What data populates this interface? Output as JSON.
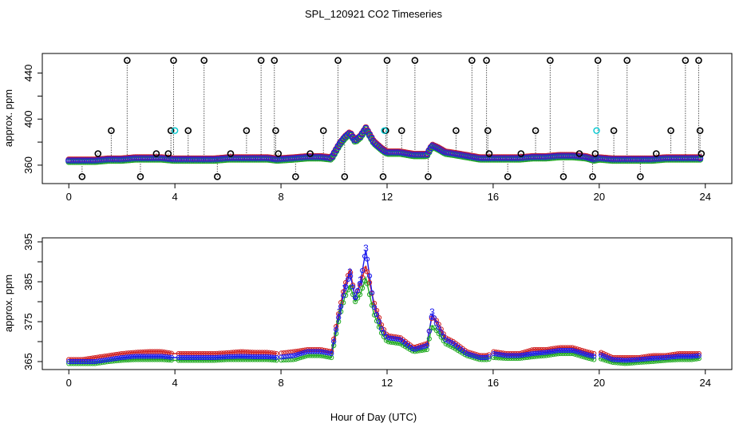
{
  "title": "SPL_120921  CO2 Timeseries",
  "xlabel": "Hour of Day (UTC)",
  "chart_data": [
    {
      "type": "scatter",
      "name": "top-panel",
      "ylabel": "approx. ppm",
      "xlim": [
        -1,
        25
      ],
      "ylim": [
        344,
        457
      ],
      "xticks": [
        0,
        4,
        8,
        12,
        16,
        20,
        24
      ],
      "yticks": [
        360,
        400,
        440
      ],
      "ytick_minor": [
        380,
        420
      ],
      "base": {
        "x": [
          0.0,
          0.5,
          1.0,
          1.5,
          2.0,
          2.5,
          3.0,
          3.5,
          3.95,
          4.5,
          5.0,
          5.5,
          6.0,
          6.5,
          7.0,
          7.5,
          7.85,
          8.5,
          9.0,
          9.5,
          9.9,
          10.2,
          10.4,
          10.6,
          10.8,
          11.0,
          11.2,
          11.5,
          11.8,
          12.0,
          12.5,
          13.0,
          13.5,
          13.7,
          13.9,
          14.2,
          14.5,
          15.0,
          15.5,
          15.8,
          16.0,
          16.5,
          17.0,
          17.5,
          18.0,
          18.5,
          19.0,
          19.5,
          19.8,
          20.0,
          20.5,
          21.0,
          21.5,
          22.0,
          22.5,
          23.0,
          23.5,
          23.8
        ],
        "y": [
          364,
          364,
          364,
          365,
          365,
          366,
          366,
          366,
          365,
          365,
          365,
          365,
          366,
          366,
          366,
          366,
          365,
          366,
          367,
          367,
          366,
          378,
          384,
          388,
          381,
          385,
          392,
          380,
          374,
          371,
          371,
          369,
          369,
          377,
          375,
          371,
          370,
          368,
          366,
          366,
          366,
          366,
          366,
          367,
          367,
          368,
          368,
          367,
          365,
          366,
          365,
          365,
          365,
          365,
          366,
          366,
          366,
          366
        ]
      },
      "outliers": {
        "x": [
          0.5,
          1.1,
          1.6,
          2.2,
          2.7,
          3.3,
          3.75,
          3.85,
          3.95,
          4.5,
          5.1,
          5.6,
          6.1,
          6.7,
          7.25,
          7.75,
          7.8,
          7.9,
          8.55,
          9.1,
          9.6,
          10.15,
          10.4,
          11.85,
          11.95,
          12.0,
          12.55,
          13.05,
          13.55,
          14.6,
          15.2,
          15.75,
          15.8,
          15.85,
          16.55,
          17.05,
          17.6,
          18.15,
          18.65,
          19.25,
          19.75,
          19.85,
          19.95,
          20.55,
          21.05,
          21.55,
          22.15,
          22.7,
          23.25,
          23.75,
          23.8,
          23.85
        ],
        "y": [
          350,
          370,
          390,
          451,
          350,
          370,
          370,
          390,
          451,
          390,
          451,
          350,
          370,
          390,
          451,
          451,
          390,
          370,
          350,
          370,
          390,
          451,
          350,
          350,
          390,
          451,
          390,
          451,
          350,
          390,
          451,
          451,
          390,
          370,
          350,
          370,
          390,
          451,
          350,
          370,
          350,
          370,
          451,
          390,
          451,
          350,
          370,
          390,
          451,
          451,
          390,
          370
        ]
      },
      "cyan_points": {
        "x": [
          4.0,
          11.9,
          19.9
        ],
        "y": [
          390,
          390,
          390
        ]
      }
    },
    {
      "type": "line",
      "name": "bottom-panel",
      "ylabel": "approx. ppm",
      "xlim": [
        -1,
        25
      ],
      "ylim": [
        363,
        396
      ],
      "xticks": [
        0,
        4,
        8,
        12,
        16,
        20,
        24
      ],
      "yticks": [
        365,
        375,
        385,
        395
      ],
      "ytick_minor": [
        370,
        380,
        390
      ],
      "point_label": "3",
      "series": [
        {
          "name": "red",
          "x": [
            0.0,
            0.5,
            1.0,
            1.5,
            2.0,
            2.5,
            3.0,
            3.5,
            3.95,
            4.5,
            5.0,
            5.5,
            6.0,
            6.5,
            7.0,
            7.5,
            7.85,
            8.5,
            9.0,
            9.5,
            9.9,
            10.2,
            10.4,
            10.6,
            10.8,
            11.0,
            11.2,
            11.5,
            11.8,
            12.0,
            12.5,
            13.0,
            13.5,
            13.7,
            13.9,
            14.2,
            14.5,
            15.0,
            15.5,
            15.8,
            16.0,
            16.5,
            17.0,
            17.5,
            18.0,
            18.5,
            19.0,
            19.5,
            19.8,
            20.0,
            20.5,
            21.0,
            21.5,
            22.0,
            22.5,
            23.0,
            23.5,
            23.8
          ],
          "y": [
            365.5,
            365.5,
            366.0,
            366.5,
            367.0,
            367.3,
            367.5,
            367.5,
            367.0,
            367.0,
            367.0,
            367.0,
            367.2,
            367.5,
            367.3,
            367.3,
            367.0,
            367.5,
            368.0,
            368.0,
            367.5,
            378.0,
            384.0,
            388.0,
            381.0,
            384.5,
            389.0,
            380.0,
            374.0,
            371.5,
            371.0,
            368.5,
            369.5,
            376.5,
            375.0,
            371.0,
            370.0,
            367.5,
            366.5,
            366.5,
            367.5,
            367.0,
            367.0,
            368.0,
            368.0,
            368.5,
            368.5,
            367.5,
            367.0,
            367.5,
            366.0,
            366.0,
            366.0,
            366.5,
            366.5,
            367.0,
            367.0,
            367.0
          ]
        },
        {
          "name": "green",
          "x": [
            0.0,
            0.5,
            1.0,
            1.5,
            2.0,
            2.5,
            3.0,
            3.5,
            3.95,
            4.5,
            5.0,
            5.5,
            6.0,
            6.5,
            7.0,
            7.5,
            7.85,
            8.5,
            9.0,
            9.5,
            9.9,
            10.2,
            10.4,
            10.6,
            10.8,
            11.0,
            11.2,
            11.5,
            11.8,
            12.0,
            12.5,
            13.0,
            13.5,
            13.7,
            13.9,
            14.2,
            14.5,
            15.0,
            15.5,
            15.8,
            16.0,
            16.5,
            17.0,
            17.5,
            18.0,
            18.5,
            19.0,
            19.5,
            19.8,
            20.0,
            20.5,
            21.0,
            21.5,
            22.0,
            22.5,
            23.0,
            23.5,
            23.8
          ],
          "y": [
            364.5,
            364.5,
            364.5,
            365.0,
            365.3,
            365.5,
            365.5,
            365.5,
            365.3,
            365.3,
            365.3,
            365.3,
            365.5,
            365.5,
            365.5,
            365.5,
            365.3,
            365.5,
            366.5,
            366.5,
            366.0,
            376.0,
            381.0,
            384.0,
            380.0,
            382.0,
            386.0,
            377.0,
            372.0,
            370.0,
            369.5,
            367.5,
            368.0,
            374.0,
            372.5,
            369.5,
            368.5,
            366.5,
            365.5,
            365.5,
            366.0,
            365.8,
            365.8,
            366.2,
            366.5,
            367.0,
            367.0,
            366.0,
            365.5,
            365.8,
            364.8,
            364.5,
            364.8,
            365.0,
            365.3,
            365.5,
            365.5,
            365.8
          ]
        },
        {
          "name": "blue",
          "x": [
            0.0,
            0.5,
            1.0,
            1.5,
            2.0,
            2.5,
            3.0,
            3.5,
            3.95,
            4.5,
            5.0,
            5.5,
            6.0,
            6.5,
            7.0,
            7.5,
            7.85,
            8.5,
            9.0,
            9.5,
            9.9,
            10.2,
            10.4,
            10.6,
            10.8,
            11.0,
            11.2,
            11.5,
            11.8,
            12.0,
            12.5,
            13.0,
            13.5,
            13.7,
            13.9,
            14.2,
            14.5,
            15.0,
            15.5,
            15.8,
            16.0,
            16.5,
            17.0,
            17.5,
            18.0,
            18.5,
            19.0,
            19.5,
            19.8,
            20.0,
            20.5,
            21.0,
            21.5,
            22.0,
            22.5,
            23.0,
            23.5,
            23.8
          ],
          "y": [
            365.0,
            365.0,
            365.0,
            365.5,
            366.0,
            366.3,
            366.3,
            366.3,
            366.0,
            366.0,
            366.0,
            366.0,
            366.2,
            366.3,
            366.2,
            366.2,
            366.0,
            366.5,
            367.5,
            367.5,
            367.0,
            377.0,
            383.0,
            387.0,
            381.0,
            385.0,
            393.0,
            379.0,
            373.0,
            371.0,
            370.5,
            368.0,
            369.0,
            377.0,
            374.0,
            370.5,
            369.5,
            367.0,
            366.0,
            366.0,
            367.0,
            366.5,
            366.5,
            367.0,
            367.3,
            367.8,
            367.8,
            366.8,
            366.3,
            366.8,
            365.5,
            365.3,
            365.5,
            365.8,
            366.0,
            366.3,
            366.3,
            366.5
          ]
        }
      ]
    }
  ]
}
